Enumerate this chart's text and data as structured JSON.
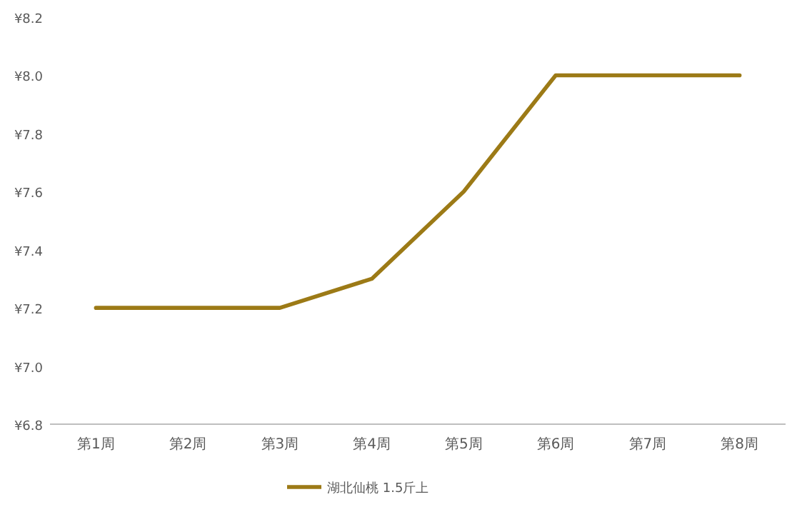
{
  "chart_data": {
    "type": "line",
    "categories": [
      "第1周",
      "第2周",
      "第3周",
      "第4周",
      "第5周",
      "第6周",
      "第7周",
      "第8周"
    ],
    "series": [
      {
        "name": "湖北仙桃 1.5斤上",
        "color": "#9c7a16",
        "values": [
          7.2,
          7.2,
          7.2,
          7.3,
          7.6,
          8.0,
          8.0,
          8.0
        ]
      }
    ],
    "ylim": [
      6.8,
      8.2
    ],
    "yticks": [
      {
        "value": 6.8,
        "label": "¥6.8"
      },
      {
        "value": 7.0,
        "label": "¥7.0"
      },
      {
        "value": 7.2,
        "label": "¥7.2"
      },
      {
        "value": 7.4,
        "label": "¥7.4"
      },
      {
        "value": 7.6,
        "label": "¥7.6"
      },
      {
        "value": 7.8,
        "label": "¥7.8"
      },
      {
        "value": 8.0,
        "label": "¥8.0"
      },
      {
        "value": 8.2,
        "label": "¥8.2"
      }
    ],
    "grid": false,
    "legend": "bottom",
    "marker": "none",
    "line_style": "solid"
  }
}
